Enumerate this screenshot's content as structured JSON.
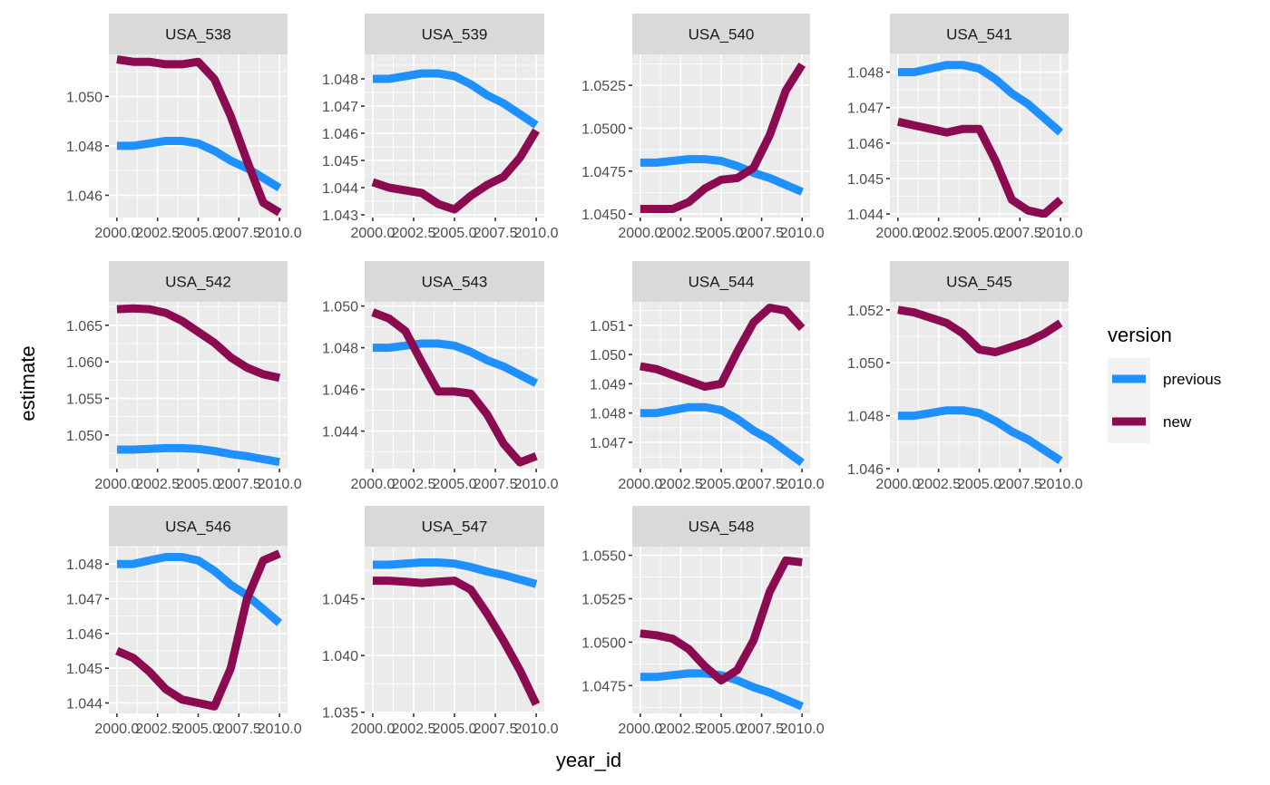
{
  "chart_data": {
    "type": "line",
    "layout": "facet_wrap",
    "xlabel": "year_id",
    "ylabel": "estimate",
    "x": [
      2000,
      2001,
      2002,
      2003,
      2004,
      2005,
      2006,
      2007,
      2008,
      2009,
      2010
    ],
    "x_ticks": [
      2000,
      2002.5,
      2005,
      2007.5,
      2010
    ],
    "x_tick_labels": [
      "2000.0",
      "2002.5",
      "2005.0",
      "2007.5",
      "2010.0"
    ],
    "xlim": [
      2000,
      2010
    ],
    "grid": true,
    "legend": {
      "title": "version",
      "placement": "right",
      "entries": [
        {
          "name": "previous",
          "color": "#1E90FF"
        },
        {
          "name": "new",
          "color": "#8B0A50"
        }
      ]
    },
    "panels": [
      {
        "title": "USA_538",
        "ylim": [
          1.0451,
          1.0517
        ],
        "y_ticks": [
          1.046,
          1.048,
          1.05
        ],
        "y_tick_labels": [
          "1.046",
          "1.048",
          "1.050"
        ],
        "series": [
          {
            "name": "previous",
            "values": [
              1.048,
              1.048,
              1.0481,
              1.0482,
              1.0482,
              1.0481,
              1.0478,
              1.0474,
              1.0471,
              1.0467,
              1.0463
            ]
          },
          {
            "name": "new",
            "values": [
              1.0515,
              1.0514,
              1.0514,
              1.0513,
              1.0513,
              1.0514,
              1.0507,
              1.0492,
              1.0474,
              1.0457,
              1.0453
            ]
          }
        ]
      },
      {
        "title": "USA_539",
        "ylim": [
          1.0429,
          1.0489
        ],
        "y_ticks": [
          1.043,
          1.044,
          1.045,
          1.046,
          1.047,
          1.048
        ],
        "y_tick_labels": [
          "1.043",
          "1.044",
          "1.045",
          "1.046",
          "1.047",
          "1.048"
        ],
        "series": [
          {
            "name": "previous",
            "values": [
              1.048,
              1.048,
              1.0481,
              1.0482,
              1.0482,
              1.0481,
              1.0478,
              1.0474,
              1.0471,
              1.0467,
              1.0463
            ]
          },
          {
            "name": "new",
            "values": [
              1.0442,
              1.044,
              1.0439,
              1.0438,
              1.0434,
              1.0432,
              1.0437,
              1.0441,
              1.0444,
              1.0451,
              1.0461
            ]
          }
        ]
      },
      {
        "title": "USA_540",
        "ylim": [
          1.0448,
          1.0543
        ],
        "y_ticks": [
          1.045,
          1.0475,
          1.05,
          1.0525
        ],
        "y_tick_labels": [
          "1.0450",
          "1.0475",
          "1.0500",
          "1.0525"
        ],
        "series": [
          {
            "name": "previous",
            "values": [
              1.048,
              1.048,
              1.0481,
              1.0482,
              1.0482,
              1.0481,
              1.0478,
              1.0474,
              1.0471,
              1.0467,
              1.0463
            ]
          },
          {
            "name": "new",
            "values": [
              1.0453,
              1.0453,
              1.0453,
              1.0457,
              1.0465,
              1.047,
              1.0471,
              1.0477,
              1.0496,
              1.0522,
              1.0537
            ]
          }
        ]
      },
      {
        "title": "USA_541",
        "ylim": [
          1.0439,
          1.0485
        ],
        "y_ticks": [
          1.044,
          1.045,
          1.046,
          1.047,
          1.048
        ],
        "y_tick_labels": [
          "1.044",
          "1.045",
          "1.046",
          "1.047",
          "1.048"
        ],
        "series": [
          {
            "name": "previous",
            "values": [
              1.048,
              1.048,
              1.0481,
              1.0482,
              1.0482,
              1.0481,
              1.0478,
              1.0474,
              1.0471,
              1.0467,
              1.0463
            ]
          },
          {
            "name": "new",
            "values": [
              1.0466,
              1.0465,
              1.0464,
              1.0463,
              1.0464,
              1.0464,
              1.0455,
              1.0444,
              1.0441,
              1.044,
              1.0444
            ]
          }
        ]
      },
      {
        "title": "USA_542",
        "ylim": [
          1.0454,
          1.0682
        ],
        "y_ticks": [
          1.05,
          1.055,
          1.06,
          1.065
        ],
        "y_tick_labels": [
          "1.050",
          "1.055",
          "1.060",
          "1.065"
        ],
        "series": [
          {
            "name": "previous",
            "values": [
              1.048,
              1.048,
              1.0481,
              1.0482,
              1.0482,
              1.0481,
              1.0478,
              1.0474,
              1.0471,
              1.0467,
              1.0463
            ]
          },
          {
            "name": "new",
            "values": [
              1.0672,
              1.0673,
              1.0672,
              1.0667,
              1.0656,
              1.0641,
              1.0626,
              1.0606,
              1.0592,
              1.0583,
              1.0578
            ]
          }
        ]
      },
      {
        "title": "USA_543",
        "ylim": [
          1.0422,
          1.0502
        ],
        "y_ticks": [
          1.044,
          1.046,
          1.048,
          1.05
        ],
        "y_tick_labels": [
          "1.044",
          "1.046",
          "1.048",
          "1.050"
        ],
        "series": [
          {
            "name": "previous",
            "values": [
              1.048,
              1.048,
              1.0481,
              1.0482,
              1.0482,
              1.0481,
              1.0478,
              1.0474,
              1.0471,
              1.0467,
              1.0463
            ]
          },
          {
            "name": "new",
            "values": [
              1.0497,
              1.0494,
              1.0488,
              1.0473,
              1.0459,
              1.0459,
              1.0458,
              1.0448,
              1.0434,
              1.0425,
              1.0428
            ]
          }
        ]
      },
      {
        "title": "USA_544",
        "ylim": [
          1.0461,
          1.0518
        ],
        "y_ticks": [
          1.047,
          1.048,
          1.049,
          1.05,
          1.051
        ],
        "y_tick_labels": [
          "1.047",
          "1.048",
          "1.049",
          "1.050",
          "1.051"
        ],
        "series": [
          {
            "name": "previous",
            "values": [
              1.048,
              1.048,
              1.0481,
              1.0482,
              1.0482,
              1.0481,
              1.0478,
              1.0474,
              1.0471,
              1.0467,
              1.0463
            ]
          },
          {
            "name": "new",
            "values": [
              1.0496,
              1.0495,
              1.0493,
              1.0491,
              1.0489,
              1.049,
              1.0501,
              1.0511,
              1.0516,
              1.0515,
              1.0509
            ]
          }
        ]
      },
      {
        "title": "USA_545",
        "ylim": [
          1.046,
          1.0523
        ],
        "y_ticks": [
          1.046,
          1.048,
          1.05,
          1.052
        ],
        "y_tick_labels": [
          "1.046",
          "1.048",
          "1.050",
          "1.052"
        ],
        "series": [
          {
            "name": "previous",
            "values": [
              1.048,
              1.048,
              1.0481,
              1.0482,
              1.0482,
              1.0481,
              1.0478,
              1.0474,
              1.0471,
              1.0467,
              1.0463
            ]
          },
          {
            "name": "new",
            "values": [
              1.052,
              1.0519,
              1.0517,
              1.0515,
              1.0511,
              1.0505,
              1.0504,
              1.0506,
              1.0508,
              1.0511,
              1.0515
            ]
          }
        ]
      },
      {
        "title": "USA_546",
        "ylim": [
          1.0437,
          1.0485
        ],
        "y_ticks": [
          1.044,
          1.045,
          1.046,
          1.047,
          1.048
        ],
        "y_tick_labels": [
          "1.044",
          "1.045",
          "1.046",
          "1.047",
          "1.048"
        ],
        "series": [
          {
            "name": "previous",
            "values": [
              1.048,
              1.048,
              1.0481,
              1.0482,
              1.0482,
              1.0481,
              1.0478,
              1.0474,
              1.0471,
              1.0467,
              1.0463
            ]
          },
          {
            "name": "new",
            "values": [
              1.0455,
              1.0453,
              1.0449,
              1.0444,
              1.0441,
              1.044,
              1.0439,
              1.045,
              1.047,
              1.0481,
              1.0483
            ]
          }
        ]
      },
      {
        "title": "USA_547",
        "ylim": [
          1.0349,
          1.0496
        ],
        "y_ticks": [
          1.035,
          1.04,
          1.045
        ],
        "y_tick_labels": [
          "1.035",
          "1.040",
          "1.045"
        ],
        "series": [
          {
            "name": "previous",
            "values": [
              1.048,
              1.048,
              1.0481,
              1.0482,
              1.0482,
              1.0481,
              1.0478,
              1.0474,
              1.0471,
              1.0467,
              1.0463
            ]
          },
          {
            "name": "new",
            "values": [
              1.0466,
              1.0466,
              1.0465,
              1.0464,
              1.0465,
              1.0466,
              1.0458,
              1.0437,
              1.0413,
              1.0387,
              1.0357
            ]
          }
        ]
      },
      {
        "title": "USA_548",
        "ylim": [
          1.0459,
          1.0555
        ],
        "y_ticks": [
          1.0475,
          1.05,
          1.0525,
          1.055
        ],
        "y_tick_labels": [
          "1.0475",
          "1.0500",
          "1.0525",
          "1.0550"
        ],
        "series": [
          {
            "name": "previous",
            "values": [
              1.048,
              1.048,
              1.0481,
              1.0482,
              1.0482,
              1.0481,
              1.0478,
              1.0474,
              1.0471,
              1.0467,
              1.0463
            ]
          },
          {
            "name": "new",
            "values": [
              1.0505,
              1.0504,
              1.0502,
              1.0496,
              1.0486,
              1.0478,
              1.0484,
              1.0501,
              1.0529,
              1.0547,
              1.0546
            ]
          }
        ]
      }
    ]
  }
}
